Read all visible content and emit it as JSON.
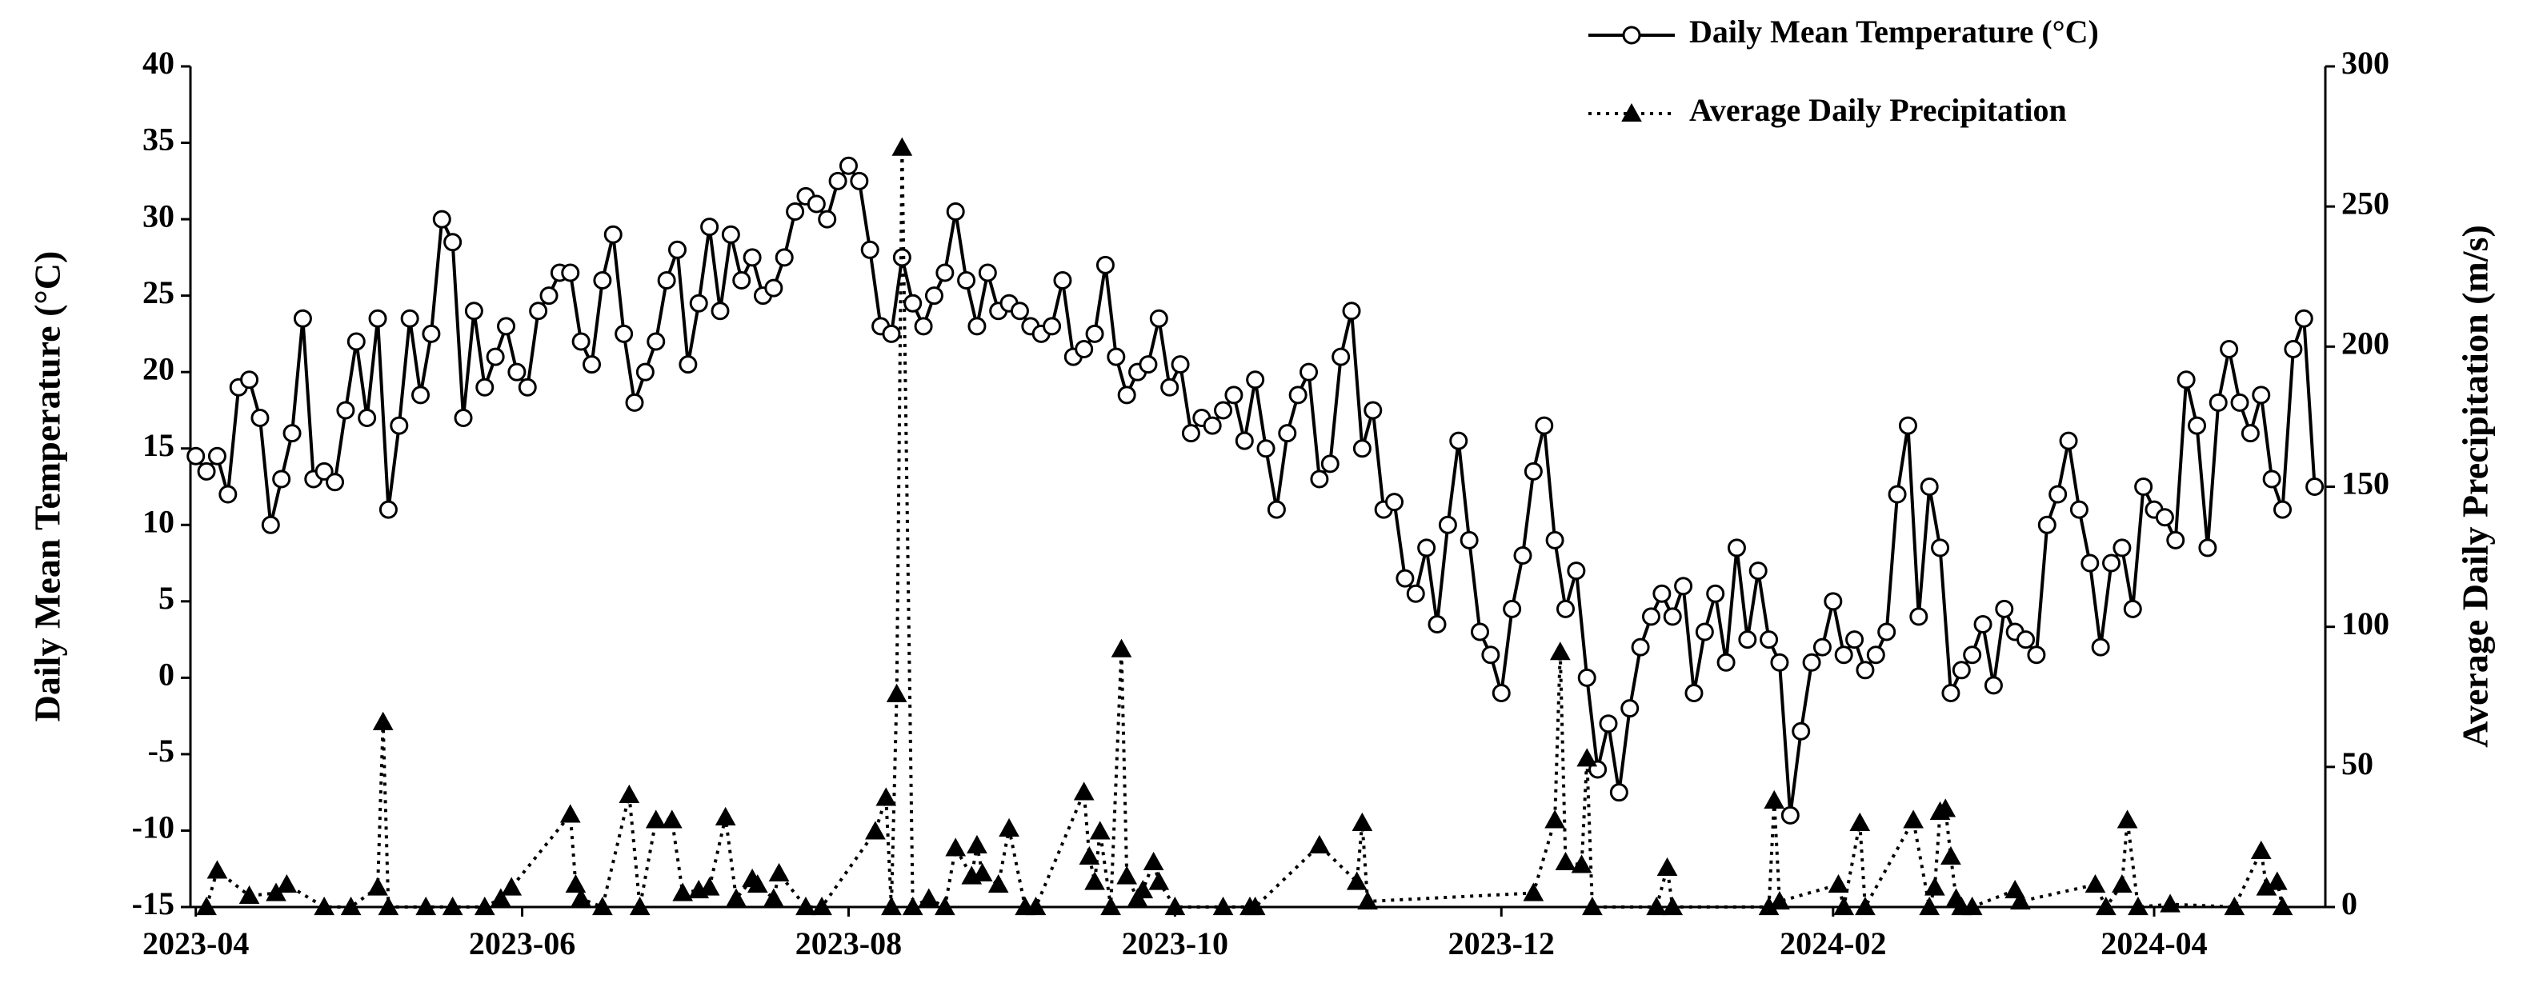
{
  "chart_data": {
    "type": "line",
    "y_label": "Daily Mean Temperature  (°C)",
    "y2_label": "Average Daily Precipitation  (m/s)",
    "xlim": [
      -1,
      398
    ],
    "xticks": [
      {
        "value": 0,
        "label": "2023-04"
      },
      {
        "value": 61,
        "label": "2023-06"
      },
      {
        "value": 122,
        "label": "2023-08"
      },
      {
        "value": 183,
        "label": "2023-10"
      },
      {
        "value": 244,
        "label": "2023-12"
      },
      {
        "value": 306,
        "label": "2024-02"
      },
      {
        "value": 366,
        "label": "2024-04"
      }
    ],
    "ylim": [
      -15,
      40
    ],
    "yticks": [
      -15,
      -10,
      -5,
      0,
      5,
      10,
      15,
      20,
      25,
      30,
      35,
      40
    ],
    "y2lim": [
      0,
      300
    ],
    "y2ticks": [
      0,
      50,
      100,
      150,
      200,
      250,
      300
    ],
    "legend": "upper right",
    "series": [
      {
        "name": "Daily Mean Temperature (°C)",
        "color": "#000000",
        "marker": "circle",
        "dash": "solid",
        "x": [
          0,
          2,
          4,
          6,
          8,
          10,
          12,
          14,
          16,
          18,
          20,
          22,
          24,
          26,
          28,
          30,
          32,
          34,
          36,
          38,
          40,
          42,
          44,
          46,
          48,
          50,
          52,
          54,
          56,
          58,
          60,
          62,
          64,
          66,
          68,
          70,
          72,
          74,
          76,
          78,
          80,
          82,
          84,
          86,
          88,
          90,
          92,
          94,
          96,
          98,
          100,
          102,
          104,
          106,
          108,
          110,
          112,
          114,
          116,
          118,
          120,
          122,
          124,
          126,
          128,
          130,
          132,
          134,
          136,
          138,
          140,
          142,
          144,
          146,
          148,
          150,
          152,
          154,
          156,
          158,
          160,
          162,
          164,
          166,
          168,
          170,
          172,
          174,
          176,
          178,
          180,
          182,
          184,
          186,
          188,
          190,
          192,
          194,
          196,
          198,
          200,
          202,
          204,
          206,
          208,
          210,
          212,
          214,
          216,
          218,
          220,
          222,
          224,
          226,
          228,
          230,
          232,
          234,
          236,
          238,
          240,
          242,
          244,
          246,
          248,
          250,
          252,
          254,
          256,
          258,
          260,
          262,
          264,
          266,
          268,
          270,
          272,
          274,
          276,
          278,
          280,
          282,
          284,
          286,
          288,
          290,
          292,
          294,
          296,
          298,
          300,
          302,
          304,
          306,
          308,
          310,
          312,
          314,
          316,
          318,
          320,
          322,
          324,
          326,
          328,
          330,
          332,
          334,
          336,
          338,
          340,
          342,
          344,
          346,
          348,
          350,
          352,
          354,
          356,
          358,
          360,
          362,
          364,
          366,
          368,
          370,
          372,
          374,
          376,
          378,
          380,
          382,
          384,
          386,
          388,
          390,
          392,
          394,
          396
        ],
        "values": [
          14.5,
          13.5,
          14.5,
          12,
          19,
          19.5,
          17,
          10,
          13,
          16,
          23.5,
          13,
          13.5,
          12.8,
          17.5,
          22,
          17,
          23.5,
          11,
          16.5,
          23.5,
          18.5,
          22.5,
          30,
          28.5,
          17,
          24,
          19,
          21,
          23,
          20,
          19,
          24,
          25,
          26.5,
          26.5,
          22,
          20.5,
          26,
          29,
          22.5,
          18,
          20,
          22,
          26,
          28,
          20.5,
          24.5,
          29.5,
          24,
          29,
          26,
          27.5,
          25,
          25.5,
          27.5,
          30.5,
          31.5,
          31,
          30,
          32.5,
          33.5,
          32.5,
          28,
          23,
          22.5,
          27.5,
          24.5,
          23,
          25,
          26.5,
          30.5,
          26,
          23,
          26.5,
          24,
          24.5,
          24,
          23,
          22.5,
          23,
          26,
          21,
          21.5,
          22.5,
          27,
          21,
          18.5,
          20,
          20.5,
          23.5,
          19,
          20.5,
          16,
          17,
          16.5,
          17.5,
          18.5,
          15.5,
          19.5,
          15,
          11,
          16,
          18.5,
          20,
          13,
          14,
          21,
          24,
          15,
          17.5,
          11,
          11.5,
          6.5,
          5.5,
          8.5,
          3.5,
          10,
          15.5,
          9,
          3,
          1.5,
          -1,
          4.5,
          8,
          13.5,
          16.5,
          9,
          4.5,
          7,
          0,
          -6,
          -3,
          -7.5,
          -2,
          2,
          4,
          5.5,
          4,
          6,
          -1,
          3,
          5.5,
          1,
          8.5,
          2.5,
          7,
          2.5,
          1,
          -9,
          -3.5,
          1,
          2,
          5,
          1.5,
          2.5,
          0.5,
          1.5,
          3,
          12,
          16.5,
          4,
          12.5,
          8.5,
          -1,
          0.5,
          1.5,
          3.5,
          -0.5,
          4.5,
          3,
          2.5,
          1.5,
          10,
          12,
          15.5,
          11,
          7.5,
          2,
          7.5,
          8.5,
          4.5,
          12.5,
          11,
          10.5,
          9,
          19.5,
          16.5,
          8.5,
          18,
          21.5,
          18,
          16,
          18.5,
          13,
          11,
          21.5,
          23.5,
          12.5
        ]
      },
      {
        "name": "Average Daily Precipitation",
        "color": "#000000",
        "marker": "triangle",
        "dash": "dotted",
        "axis": "y2",
        "x": [
          2,
          4,
          10,
          15,
          17,
          24,
          29,
          34,
          35,
          36,
          43,
          48,
          54,
          57,
          59,
          70,
          71,
          72,
          76,
          81,
          83,
          86,
          89,
          91,
          94,
          96,
          99,
          101,
          104,
          105,
          108,
          109,
          114,
          117,
          127,
          129,
          130,
          131,
          132,
          134,
          137,
          140,
          142,
          145,
          146,
          147,
          150,
          152,
          155,
          157,
          166,
          167,
          168,
          169,
          171,
          173,
          174,
          176,
          177,
          179,
          180,
          183,
          192,
          197,
          198,
          210,
          217,
          218,
          219,
          250,
          254,
          255,
          256,
          259,
          260,
          261,
          273,
          275,
          276,
          294,
          295,
          296,
          307,
          308,
          311,
          312,
          321,
          324,
          325,
          326,
          327,
          328,
          329,
          330,
          332,
          340,
          341,
          355,
          357,
          360,
          361,
          363,
          369,
          381,
          386,
          387,
          389,
          390
        ],
        "values": [
          0,
          13,
          4,
          5,
          8,
          0,
          0,
          7,
          66,
          0,
          0,
          0,
          0,
          3,
          7,
          33,
          8,
          3,
          0,
          40,
          0,
          31,
          31,
          5,
          6,
          7,
          32,
          3,
          10,
          8,
          3,
          12,
          0,
          0,
          27,
          39,
          0,
          76,
          271,
          0,
          3,
          0,
          21,
          11,
          22,
          12,
          8,
          28,
          0,
          0,
          41,
          18,
          9,
          27,
          0,
          92,
          11,
          3,
          6,
          16,
          9,
          0,
          0,
          0,
          0,
          22,
          9,
          30,
          2,
          5,
          31,
          91,
          16,
          15,
          53,
          0,
          0,
          14,
          0,
          0,
          38,
          2,
          8,
          0,
          30,
          0,
          31,
          0,
          7,
          34,
          35,
          18,
          3,
          0,
          0,
          6,
          2,
          8,
          0,
          8,
          31,
          0,
          1,
          0,
          20,
          7,
          9,
          0
        ]
      }
    ]
  }
}
